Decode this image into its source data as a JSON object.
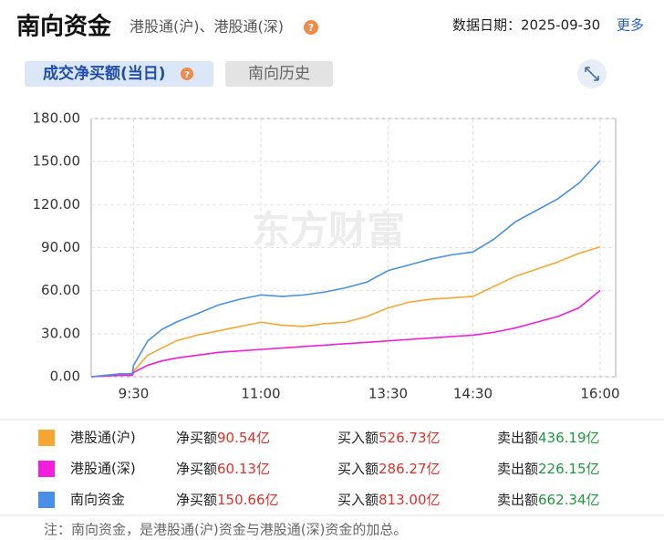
{
  "header": {
    "title": "南向资金",
    "subtitle": "港股通(沪)、港股通(深)",
    "help": "?",
    "date": "数据日期：2025-09-30",
    "more": "更多"
  },
  "tabs": [
    {
      "label": "成交净买额(当日)",
      "help": "?"
    },
    {
      "label": "南向历史"
    }
  ],
  "chart_data": {
    "type": "line",
    "watermark": "东方财富",
    "x": [
      0,
      20,
      29,
      30,
      40,
      50,
      60,
      75,
      90,
      105,
      120,
      135,
      150,
      165,
      180,
      195,
      210,
      225,
      240,
      255,
      270,
      285,
      300,
      315,
      330,
      345,
      360
    ],
    "xlim": [
      0,
      360
    ],
    "xticks": [
      {
        "value": 30,
        "label": "9:30"
      },
      {
        "value": 120,
        "label": "11:00"
      },
      {
        "value": 210,
        "label": "13:30"
      },
      {
        "value": 270,
        "label": "14:30"
      },
      {
        "value": 360,
        "label": "16:00"
      }
    ],
    "ylim": [
      0,
      180
    ],
    "yticks": [
      {
        "value": 0,
        "label": "0.00"
      },
      {
        "value": 30,
        "label": "30.00"
      },
      {
        "value": 60,
        "label": "60.00"
      },
      {
        "value": 90,
        "label": "90.00"
      },
      {
        "value": 120,
        "label": "120.00"
      },
      {
        "value": 150,
        "label": "150.00"
      },
      {
        "value": 180,
        "label": "180.00"
      }
    ],
    "grid": true,
    "series": [
      {
        "name": "港股通(沪)",
        "color": "#f7a633",
        "values": [
          0,
          1,
          1,
          4,
          15,
          20,
          25,
          29,
          32,
          35,
          38,
          36,
          35,
          37,
          38,
          42,
          48,
          52,
          54,
          55,
          56,
          63,
          70,
          75,
          80,
          86,
          90.54
        ]
      },
      {
        "name": "港股通(深)",
        "color": "#f01fdc",
        "values": [
          0,
          1,
          1,
          3,
          8,
          11,
          13,
          15,
          17,
          18,
          19,
          20,
          21,
          22,
          23,
          24,
          25,
          26,
          27,
          28,
          29,
          31,
          34,
          38,
          42,
          48,
          60.13
        ]
      },
      {
        "name": "南向资金",
        "color": "#4a8fe7",
        "values": [
          0,
          2,
          2,
          8,
          25,
          33,
          38,
          44,
          50,
          54,
          57,
          56,
          57,
          59,
          62,
          66,
          74,
          78,
          82,
          85,
          87,
          96,
          108,
          116,
          124,
          135,
          150.66
        ]
      }
    ],
    "legend_fields": [
      "净买额",
      "买入额",
      "卖出额"
    ],
    "legend_rows": [
      {
        "net": "90.54亿",
        "buy": "526.73亿",
        "sell": "436.19亿"
      },
      {
        "net": "60.13亿",
        "buy": "286.27亿",
        "sell": "226.15亿"
      },
      {
        "net": "150.66亿",
        "buy": "813.00亿",
        "sell": "662.34亿"
      }
    ]
  },
  "footer": {
    "note": "注：南向资金，是港股通(沪)资金与港股通(深)资金的加总。"
  }
}
